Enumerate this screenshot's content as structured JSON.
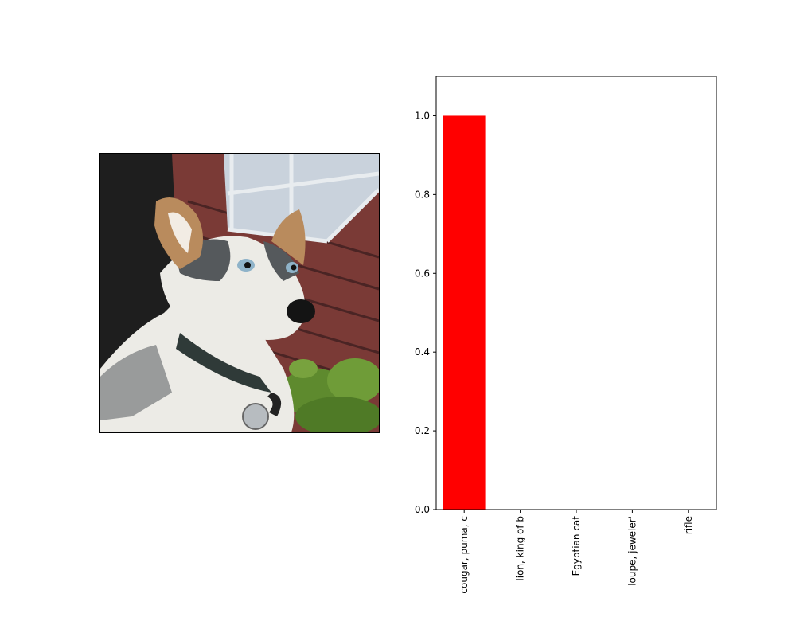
{
  "image": {
    "subject": "dog",
    "colors": {
      "sky": "#1e1e1e",
      "siding": "#7a3a36",
      "siding_dark": "#4a2424",
      "window": "#c9d2dc",
      "window_frame": "#e8ecef",
      "fur_white": "#ecebe6",
      "fur_grey": "#55595c",
      "fur_tan": "#b98b5d",
      "collar": "#2f3a38",
      "leaves": "#5e8a2e"
    }
  },
  "chart_data": {
    "type": "bar",
    "categories": [
      "cougar, puma, c",
      "lion, king of b",
      "Egyptian cat",
      "loupe, jeweler'",
      "rifle"
    ],
    "values": [
      1.0,
      0.0,
      0.0,
      0.0,
      0.0
    ],
    "bar_color": "#ff0000",
    "ylim": [
      0,
      1.1
    ],
    "yticks": [
      0.0,
      0.2,
      0.4,
      0.6,
      0.8,
      1.0
    ],
    "ytick_labels": [
      "0.0",
      "0.2",
      "0.4",
      "0.6",
      "0.8",
      "1.0"
    ],
    "xlabel": "",
    "ylabel": "",
    "title": "",
    "grid": false
  }
}
